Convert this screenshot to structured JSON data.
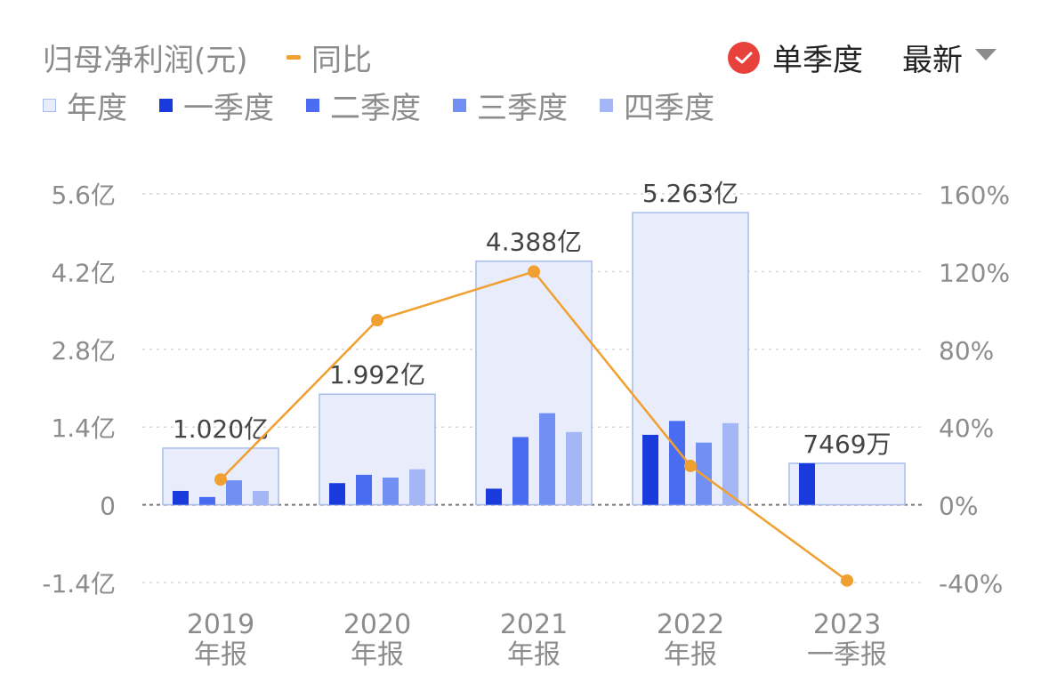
{
  "header": {
    "title": "归母净利润(元)",
    "yoy_legend": "同比",
    "single_quarter": "单季度",
    "sort_label": "最新"
  },
  "legend": [
    {
      "label": "年度",
      "color": "#e8ecfb",
      "border": "#a8bcec"
    },
    {
      "label": "一季度",
      "color": "#1a3bdc"
    },
    {
      "label": "二季度",
      "color": "#4a6cf0"
    },
    {
      "label": "三季度",
      "color": "#7290f3"
    },
    {
      "label": "四季度",
      "color": "#a3b7f7"
    }
  ],
  "colors": {
    "annual_fill": "#e8ecfb",
    "annual_border": "#a8bcec",
    "q1": "#1a3bdc",
    "q2": "#4a6cf0",
    "q3": "#7290f3",
    "q4": "#a3b7f7",
    "line": "#f0a030",
    "check": "#e8413c"
  },
  "chart_data": {
    "type": "bar",
    "categories": [
      "2019\n年报",
      "2020\n年报",
      "2021\n年报",
      "2022\n年报",
      "2023\n一季报"
    ],
    "annual_values": [
      1.02,
      1.992,
      4.388,
      5.263,
      0.7469
    ],
    "annual_labels": [
      "1.020亿",
      "1.992亿",
      "4.388亿",
      "5.263亿",
      "7469万"
    ],
    "series": [
      {
        "name": "一季度",
        "values": [
          0.25,
          0.39,
          0.29,
          1.26,
          0.7469
        ]
      },
      {
        "name": "二季度",
        "values": [
          0.14,
          0.54,
          1.22,
          1.51,
          null
        ]
      },
      {
        "name": "三季度",
        "values": [
          0.44,
          0.49,
          1.65,
          1.12,
          null
        ]
      },
      {
        "name": "四季度",
        "values": [
          0.25,
          0.64,
          1.31,
          1.47,
          null
        ]
      }
    ],
    "line_series": {
      "name": "同比",
      "values": [
        13,
        95,
        120,
        20,
        -39
      ]
    },
    "y_left": {
      "min": -1.4,
      "max": 5.6,
      "ticks": [
        "-1.4亿",
        "0",
        "1.4亿",
        "2.8亿",
        "4.2亿",
        "5.6亿"
      ],
      "tick_values": [
        -1.4,
        0,
        1.4,
        2.8,
        4.2,
        5.6
      ]
    },
    "y_right": {
      "min": -40,
      "max": 160,
      "ticks": [
        "-40%",
        "0%",
        "40%",
        "80%",
        "120%",
        "160%"
      ],
      "tick_values": [
        -40,
        0,
        40,
        80,
        120,
        160
      ]
    },
    "grid": true,
    "legend_position": "top-left"
  }
}
